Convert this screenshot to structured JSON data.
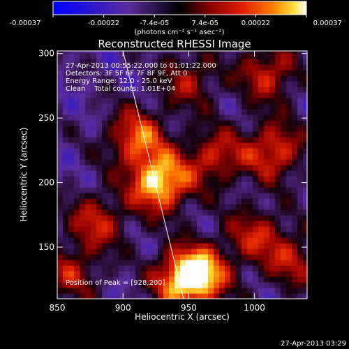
{
  "chart_data": {
    "type": "heatmap",
    "title": "Reconstructed RHESSI Image",
    "xlabel": "Heliocentric X (arcsec)",
    "ylabel": "Heliocentric Y (arcsec)",
    "xlim": [
      850,
      1040
    ],
    "ylim": [
      110,
      302
    ],
    "x_ticks": [
      850,
      900,
      950,
      1000
    ],
    "y_ticks": [
      150,
      200,
      250,
      300
    ],
    "colorbar": {
      "ticks": [
        "-0.00037",
        "-0.00022",
        "-7.4e-05",
        "7.4e-05",
        "0.00022",
        "0.00037"
      ],
      "unit_label": "(photons cm⁻² s⁻¹ asec⁻²)",
      "range": [
        -0.00037,
        0.00037
      ]
    },
    "annotations": [
      "27-Apr-2013 00:55:22.000 to 01:01:22.000",
      "Detectors: 3F 5F 6F 7F 8F 9F, Att 0",
      "Energy Range: 12.0 - 25.0 keV",
      "Clean    Total counts: 1.01E+04"
    ],
    "peak_label": "Position of Peak = [928,200]",
    "peak": [
      928,
      200
    ],
    "limb_line": [
      [
        900,
        302
      ],
      [
        946,
        110
      ]
    ],
    "sources": [
      {
        "x": 928,
        "y": 200,
        "value": 0.00037
      },
      {
        "x": 910,
        "y": 235,
        "value": 0.00022
      },
      {
        "x": 945,
        "y": 125,
        "value": 0.00026
      },
      {
        "x": 960,
        "y": 130,
        "value": 0.00022
      },
      {
        "x": 1015,
        "y": 225,
        "value": 0.0002
      },
      {
        "x": 1010,
        "y": 285,
        "value": 0.00016
      },
      {
        "x": 880,
        "y": 170,
        "value": 0.00014
      },
      {
        "x": 970,
        "y": 220,
        "value": 0.00015
      },
      {
        "x": 1000,
        "y": 160,
        "value": 0.00012
      },
      {
        "x": 860,
        "y": 130,
        "value": 0.0001
      },
      {
        "x": 950,
        "y": 280,
        "value": 0.0001
      },
      {
        "x": 1030,
        "y": 140,
        "value": 0.00011
      }
    ]
  },
  "footer_timestamp": "27-Apr-2013 03:29"
}
